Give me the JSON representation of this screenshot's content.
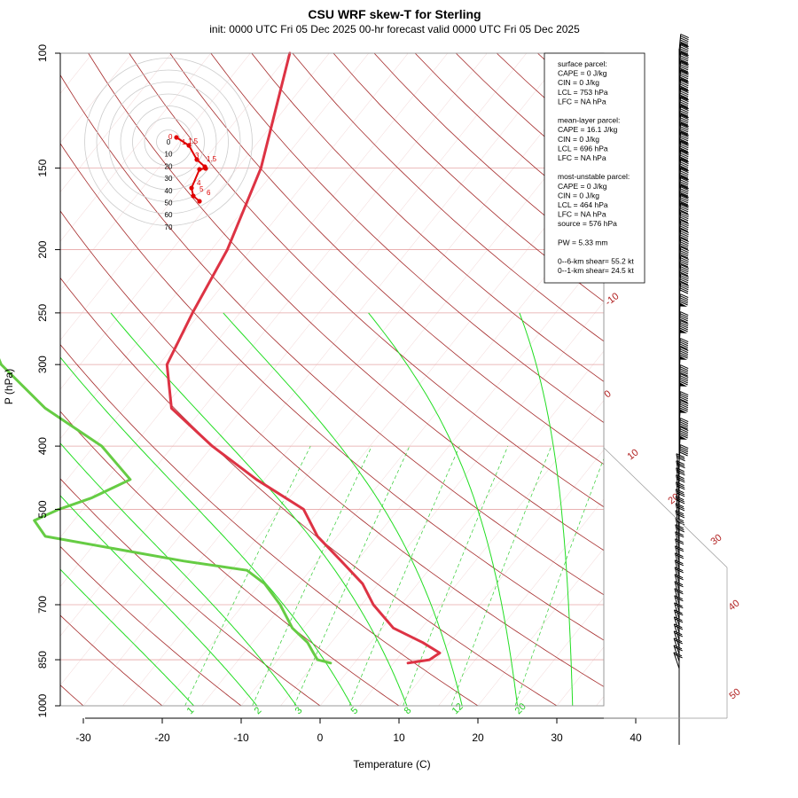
{
  "chart_data": {
    "type": "line",
    "title": "CSU WRF skew-T for Sterling",
    "subtitle": "init: 0000 UTC Fri 05 Dec 2025    00-hr forecast valid 0000 UTC Fri 05 Dec 2025",
    "xlabel": "Temperature (C)",
    "ylabel": "P (hPa)",
    "x_ticks": [
      "-30",
      "-20",
      "-10",
      "0",
      "10",
      "20",
      "30",
      "40"
    ],
    "y_ticks": [
      "100",
      "150",
      "200",
      "250",
      "300",
      "400",
      "500",
      "700",
      "850",
      "1000"
    ],
    "isotherm_labels": [
      "-10",
      "0",
      "10",
      "20",
      "30",
      "40",
      "50"
    ],
    "mixing_ratio_labels": [
      "1",
      "2",
      "3",
      "5",
      "8",
      "12",
      "20"
    ],
    "series": [
      {
        "name": "temperature",
        "color": "#dd3344",
        "p": [
          860,
          850,
          830,
          800,
          760,
          700,
          650,
          600,
          550,
          500,
          450,
          400,
          350,
          300,
          250,
          200,
          150,
          100
        ],
        "values": [
          6.8,
          9.2,
          9.8,
          6.6,
          1.4,
          -3.5,
          -7.0,
          -12.0,
          -17.5,
          -22.0,
          -31.0,
          -40.0,
          -49.0,
          -54.0,
          -56.0,
          -58.0,
          -62.0,
          -70.0
        ]
      },
      {
        "name": "dewpoint",
        "color": "#66cc44",
        "p": [
          860,
          850,
          830,
          800,
          760,
          700,
          650,
          620,
          600,
          550,
          520,
          500,
          480,
          450,
          400,
          350,
          300,
          250,
          200,
          170
        ],
        "values": [
          -3.0,
          -5.0,
          -6.2,
          -8.0,
          -11.4,
          -15.3,
          -19.4,
          -23.0,
          -32.0,
          -52.0,
          -55.0,
          -53.0,
          -50.0,
          -47.0,
          -54.0,
          -65.0,
          -75.0,
          -83.0,
          -89.0,
          -94.0
        ]
      }
    ],
    "wind_barbs_present": true
  },
  "indices": {
    "lines": [
      "surface parcel:",
      "CAPE = 0 J/kg",
      "CIN = 0 J/kg",
      "LCL = 753 hPa",
      "LFC = NA hPa",
      "",
      "mean-layer parcel:",
      "CAPE = 16.1 J/kg",
      "CIN = 0 J/kg",
      "LCL = 696 hPa",
      "LFC = NA hPa",
      "",
      "most-unstable parcel:",
      "CAPE = 0 J/kg",
      "CIN = 0 J/kg",
      "LCL = 464 hPa",
      "LFC = NA hPa",
      "source = 576 hPa",
      "",
      "PW =  5.33 mm",
      "",
      "0--6-km shear= 55.2 kt",
      "0--1-km shear= 24.5 kt"
    ]
  },
  "hodograph": {
    "ring_labels": [
      "0",
      "10",
      "20",
      "30",
      "40",
      "50",
      "60",
      "70"
    ],
    "point_labels": [
      "0",
      "1",
      "1.5",
      "3",
      "1.5",
      "4",
      "5",
      "6"
    ],
    "line_color": "#e00000"
  }
}
